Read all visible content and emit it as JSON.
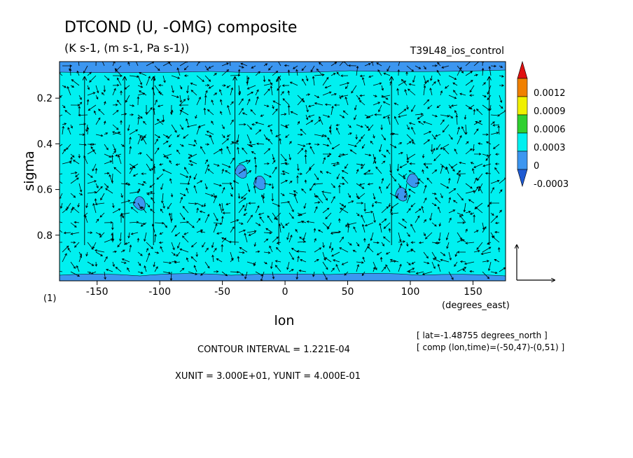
{
  "chart_data": {
    "type": "heatmap",
    "title": "DTCOND (U, -OMG) composite",
    "subtitle": "(K s-1, (m s-1, Pa s-1))",
    "run_label": "T39L48_ios_control",
    "xlabel": "lon",
    "xunits": "(degrees_east)",
    "ylabel": "sigma",
    "panel_label": "(1)",
    "xlim": [
      -180,
      176
    ],
    "ylim": [
      1.0,
      0.04
    ],
    "y_reversed": true,
    "xticks": [
      -150,
      -100,
      -50,
      0,
      50,
      100,
      150
    ],
    "xtick_labels": [
      "-150",
      "-100",
      "-50",
      "0",
      "50",
      "100",
      "150"
    ],
    "yticks": [
      0.2,
      0.4,
      0.6,
      0.8
    ],
    "ytick_labels": [
      "0.2",
      "0.4",
      "0.6",
      "0.8"
    ],
    "field_background_level": "0",
    "colorbar": {
      "levels": [
        "0.0012",
        "0.0009",
        "0.0006",
        "0.0003",
        "0",
        "-0.0003"
      ],
      "colors": [
        "#f08000",
        "#f0f000",
        "#30d030",
        "#00f0f0",
        "#3c96f0"
      ],
      "over_color": "#e01010",
      "under_color": "#1e5ad2"
    },
    "negative_regions": [
      {
        "lon": -188,
        "sigma": 0.1,
        "note": "top band"
      },
      {
        "lon": -116,
        "sigma": 0.66
      },
      {
        "lon": -35,
        "sigma": 0.52
      },
      {
        "lon": -20,
        "sigma": 0.57
      },
      {
        "lon": 93,
        "sigma": 0.62
      },
      {
        "lon": 102,
        "sigma": 0.56
      },
      {
        "lon": 0,
        "sigma": 0.97,
        "note": "surface band"
      }
    ],
    "vector_reference": {
      "xunit": "3.000E+01",
      "yunit": "4.000E-01"
    },
    "notes": {
      "lat_line": "[ lat=-1.48755 degrees_north ]",
      "comp_line": "[ comp (lon,time)=(-50,47)-(0,51) ]",
      "contour_interval": "CONTOUR INTERVAL = 1.221E-04",
      "units_line": "XUNIT = 3.000E+01, YUNIT = 4.000E-01"
    }
  }
}
